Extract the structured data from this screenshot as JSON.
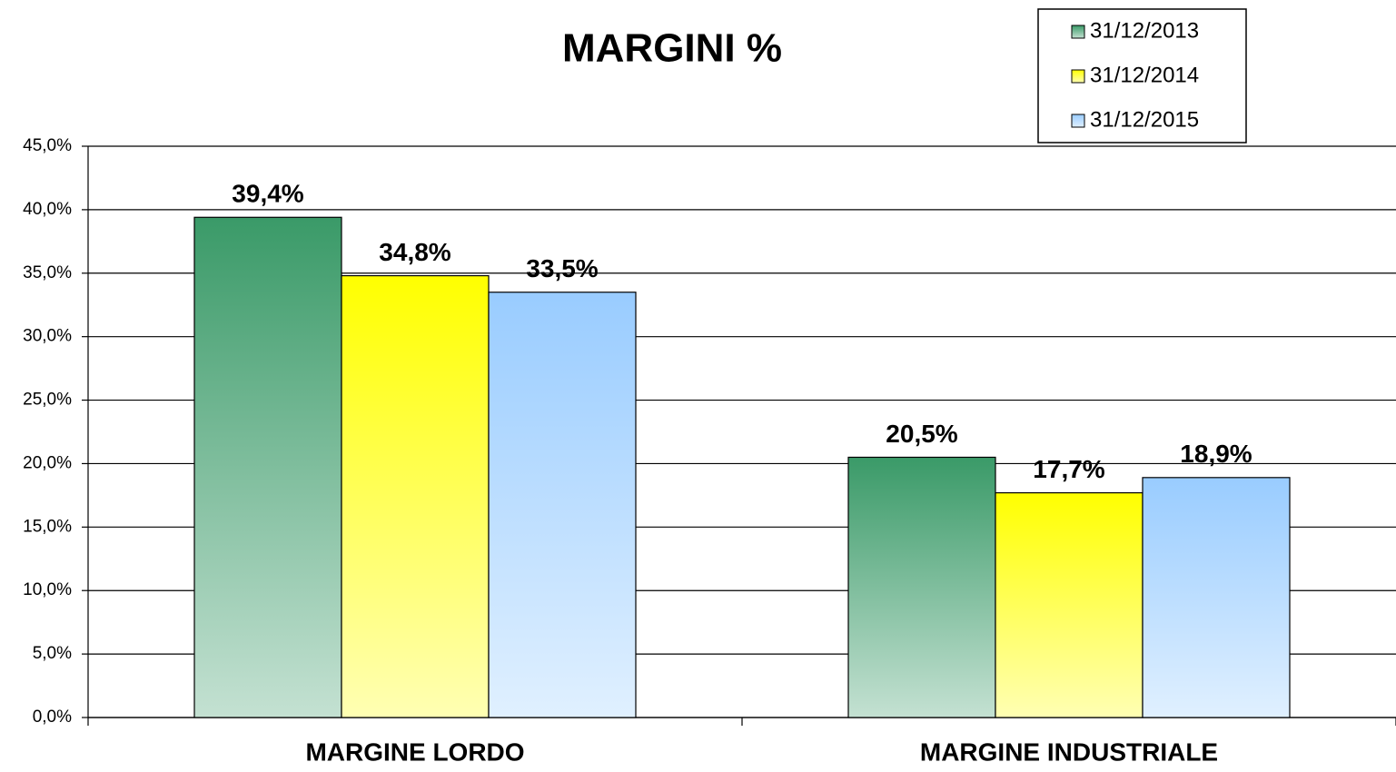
{
  "chart_data": {
    "type": "bar",
    "title": "MARGINI %",
    "categories": [
      "MARGINE LORDO",
      "MARGINE INDUSTRIALE"
    ],
    "series": [
      {
        "name": "31/12/2013",
        "color": "#3a9a68",
        "values": [
          39.4,
          20.5
        ],
        "value_labels": [
          "39,4%",
          "20,5%"
        ]
      },
      {
        "name": "31/12/2014",
        "color": "#ffff00",
        "values": [
          34.8,
          17.7
        ],
        "value_labels": [
          "34,8%",
          "17,7%"
        ]
      },
      {
        "name": "31/12/2015",
        "color": "#99ccff",
        "values": [
          33.5,
          18.9
        ],
        "value_labels": [
          "33,5%",
          "18,9%"
        ]
      }
    ],
    "ylim": [
      0,
      45
    ],
    "yticks": [
      {
        "value": 0,
        "label": "0,0%"
      },
      {
        "value": 5,
        "label": "5,0%"
      },
      {
        "value": 10,
        "label": "10,0%"
      },
      {
        "value": 15,
        "label": "15,0%"
      },
      {
        "value": 20,
        "label": "20,0%"
      },
      {
        "value": 25,
        "label": "25,0%"
      },
      {
        "value": 30,
        "label": "30,0%"
      },
      {
        "value": 35,
        "label": "35,0%"
      },
      {
        "value": 40,
        "label": "40,0%"
      },
      {
        "value": 45,
        "label": "45,0%"
      }
    ],
    "grid": true,
    "legend": "top-right"
  }
}
